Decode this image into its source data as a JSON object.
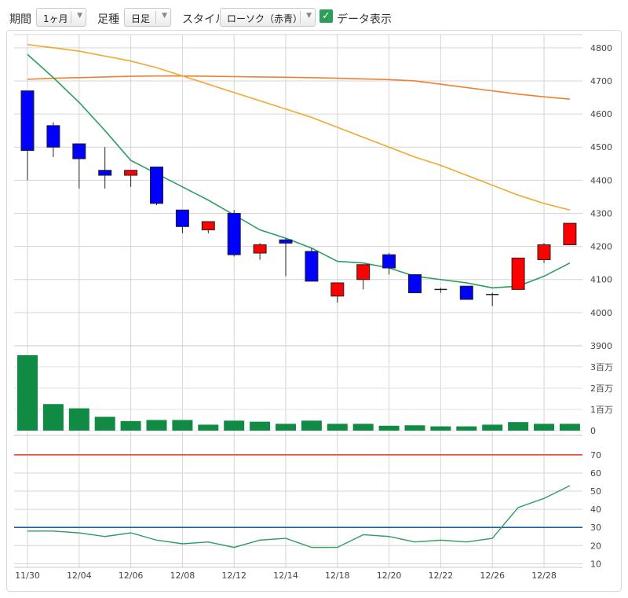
{
  "toolbar": {
    "period_label": "期間",
    "period_value": "1ヶ月",
    "interval_label": "足種",
    "interval_value": "日足",
    "style_label": "スタイル",
    "style_value": "ローソク（赤青）",
    "data_display_label": "データ表示",
    "data_display_checked": true
  },
  "colors": {
    "up": "#ff0000",
    "down": "#0000ff",
    "ma_short": "#2e9e5e",
    "ma_mid": "#f0a830",
    "ma_long": "#f08030",
    "volume": "#118a44",
    "rsi": "#2e9e5e",
    "line70": "#e04a3a",
    "line30": "#1a5f9e"
  },
  "chart_data": [
    {
      "type": "candlestick",
      "categories": [
        "11/30",
        "12/01",
        "12/04",
        "12/05",
        "12/06",
        "12/07",
        "12/08",
        "12/11",
        "12/12",
        "12/13",
        "12/14",
        "12/15",
        "12/18",
        "12/19",
        "12/20",
        "12/21",
        "12/22",
        "12/25",
        "12/26",
        "12/27",
        "12/28",
        "12/29"
      ],
      "x_tick_labels": [
        "11/30",
        "12/04",
        "12/06",
        "12/08",
        "12/12",
        "12/14",
        "12/18",
        "12/20",
        "12/22",
        "12/26",
        "12/28"
      ],
      "x_tick_indices": [
        0,
        2,
        4,
        6,
        8,
        10,
        12,
        14,
        16,
        18,
        20
      ],
      "ohlc": [
        [
          4670,
          4670,
          4400,
          4490
        ],
        [
          4565,
          4575,
          4470,
          4500
        ],
        [
          4510,
          4510,
          4375,
          4465
        ],
        [
          4430,
          4500,
          4375,
          4415
        ],
        [
          4415,
          4430,
          4380,
          4430
        ],
        [
          4440,
          4440,
          4325,
          4330
        ],
        [
          4310,
          4310,
          4240,
          4260
        ],
        [
          4250,
          4275,
          4240,
          4275
        ],
        [
          4300,
          4310,
          4170,
          4175
        ],
        [
          4180,
          4210,
          4160,
          4205
        ],
        [
          4220,
          4225,
          4110,
          4210
        ],
        [
          4185,
          4195,
          4095,
          4095
        ],
        [
          4050,
          4090,
          4030,
          4090
        ],
        [
          4100,
          4145,
          4070,
          4145
        ],
        [
          4175,
          4180,
          4115,
          4135
        ],
        [
          4115,
          4115,
          4060,
          4060
        ],
        [
          4070,
          4075,
          4060,
          4070
        ],
        [
          4080,
          4080,
          4040,
          4040
        ],
        [
          4055,
          4060,
          4020,
          4055
        ],
        [
          4070,
          4165,
          4070,
          4165
        ],
        [
          4160,
          4210,
          4150,
          4205
        ],
        [
          4205,
          4270,
          4205,
          4270
        ]
      ],
      "ma_short": [
        4780,
        4710,
        4635,
        4550,
        4460,
        4420,
        4380,
        4340,
        4295,
        4250,
        4225,
        4195,
        4155,
        4150,
        4135,
        4110,
        4100,
        4090,
        4075,
        4080,
        4110,
        4150
      ],
      "ma_mid": [
        4810,
        4800,
        4790,
        4775,
        4760,
        4740,
        4715,
        4690,
        4665,
        4640,
        4615,
        4590,
        4560,
        4530,
        4500,
        4470,
        4445,
        4415,
        4385,
        4355,
        4330,
        4310
      ],
      "ma_long": [
        4705,
        4708,
        4710,
        4712,
        4714,
        4715,
        4715,
        4714,
        4713,
        4712,
        4711,
        4710,
        4708,
        4706,
        4704,
        4700,
        4690,
        4680,
        4670,
        4660,
        4652,
        4645
      ],
      "ylim": [
        3900,
        4840
      ],
      "y_ticks": [
        4800,
        4700,
        4600,
        4500,
        4400,
        4300,
        4200,
        4100,
        4000,
        3900
      ],
      "y_tick_labels": [
        "4800",
        "4700",
        "4600",
        "4500",
        "4400",
        "4300",
        "4200",
        "4100",
        "4000",
        "3900"
      ],
      "grid": true
    },
    {
      "type": "bar",
      "name": "volume",
      "values": [
        3.55,
        1.25,
        1.05,
        0.65,
        0.45,
        0.5,
        0.5,
        0.28,
        0.47,
        0.42,
        0.32,
        0.47,
        0.32,
        0.32,
        0.23,
        0.25,
        0.2,
        0.2,
        0.28,
        0.4,
        0.32,
        0.32
      ],
      "ylim": [
        0,
        3.7
      ],
      "y_ticks": [
        0,
        1,
        2,
        3
      ],
      "y_tick_labels": [
        "0",
        "1百万",
        "2百万",
        "3百万"
      ]
    },
    {
      "type": "line",
      "name": "rsi",
      "values": [
        28,
        28,
        27,
        25,
        27,
        23,
        21,
        22,
        19,
        23,
        24,
        19,
        19,
        26,
        25,
        22,
        23,
        22,
        24,
        41,
        46,
        53
      ],
      "reference_lines": [
        70,
        30
      ],
      "ylim": [
        8,
        76
      ],
      "y_ticks": [
        70,
        60,
        50,
        40,
        30,
        20,
        10
      ],
      "y_tick_labels": [
        "70",
        "60",
        "50",
        "40",
        "30",
        "20",
        "10"
      ]
    }
  ]
}
